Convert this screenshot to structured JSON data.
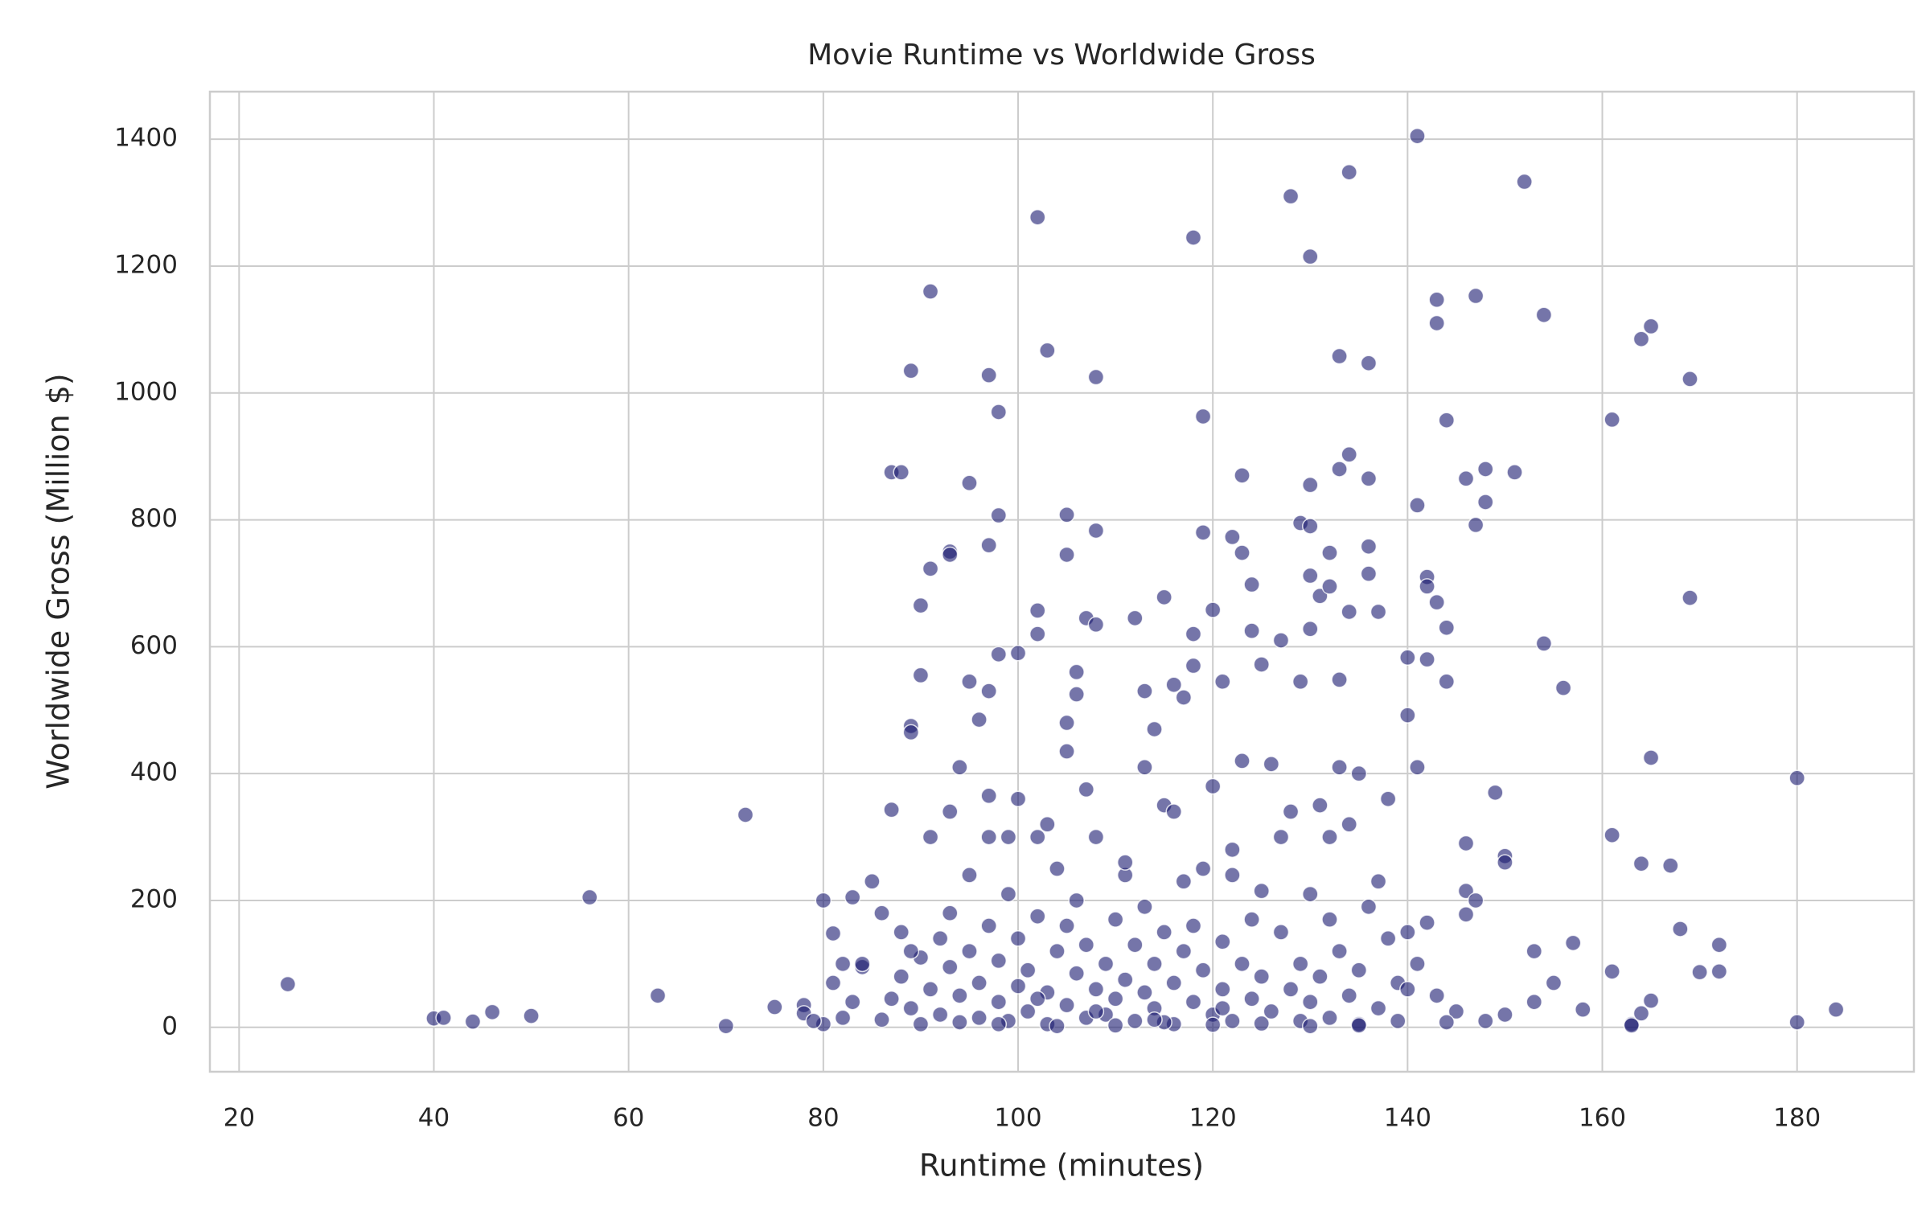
{
  "chart_data": {
    "type": "scatter",
    "title": "Movie Runtime vs Worldwide Gross",
    "x_label": "Runtime (minutes)",
    "y_label": "Worldwide Gross (Million $)",
    "color": "#191970",
    "grid": true,
    "xlim": [
      17,
      192
    ],
    "ylim": [
      -70,
      1475
    ],
    "xticks": [
      20,
      40,
      60,
      80,
      100,
      120,
      140,
      160,
      180
    ],
    "yticks": [
      0,
      200,
      400,
      600,
      800,
      1000,
      1200,
      1400
    ],
    "x": [
      25,
      40,
      41,
      44,
      46,
      50,
      56,
      63,
      70,
      72,
      75,
      78,
      78,
      80,
      81,
      82,
      83,
      84,
      87,
      88,
      87,
      89,
      91,
      90,
      90,
      89,
      89,
      91,
      93,
      93,
      95,
      97,
      97,
      98,
      98,
      98,
      100,
      97,
      96,
      95,
      94,
      102,
      103,
      105,
      105,
      108,
      108,
      102,
      102,
      106,
      106,
      105,
      105,
      107,
      108,
      112,
      113,
      114,
      115,
      118,
      119,
      119,
      120,
      122,
      123,
      123,
      124,
      124,
      118,
      118,
      117,
      116,
      121,
      128,
      130,
      130,
      129,
      130,
      131,
      130,
      132,
      132,
      133,
      134,
      133,
      134,
      136,
      136,
      136,
      136,
      137,
      134,
      130,
      133,
      129,
      127,
      125,
      141,
      141,
      142,
      142,
      143,
      144,
      143,
      143,
      144,
      144,
      142,
      140,
      140,
      141,
      147,
      146,
      148,
      148,
      147,
      151,
      152,
      154,
      154,
      156,
      161,
      164,
      165,
      169,
      169,
      149,
      150,
      150,
      146,
      146,
      147,
      146,
      153,
      155,
      157,
      158,
      161,
      161,
      164,
      165,
      167,
      168,
      170,
      172,
      172,
      180,
      180,
      184,
      163,
      163,
      165,
      164,
      153,
      150,
      148,
      145,
      144,
      86,
      87,
      88,
      88,
      89,
      90,
      90,
      91,
      92,
      92,
      93,
      93,
      94,
      94,
      95,
      95,
      96,
      96,
      97,
      97,
      98,
      98,
      99,
      99,
      100,
      100,
      100,
      101,
      101,
      102,
      102,
      103,
      103,
      104,
      104,
      105,
      105,
      106,
      106,
      107,
      107,
      108,
      108,
      109,
      109,
      110,
      110,
      111,
      111,
      112,
      112,
      113,
      113,
      114,
      114,
      115,
      115,
      116,
      116,
      117,
      117,
      118,
      118,
      119,
      120,
      120,
      121,
      121,
      122,
      122,
      123,
      123,
      124,
      124,
      125,
      125,
      126,
      127,
      127,
      128,
      129,
      129,
      130,
      130,
      131,
      131,
      132,
      132,
      133,
      133,
      134,
      134,
      135,
      135,
      136,
      137,
      137,
      138,
      138,
      139,
      139,
      140,
      140,
      141,
      142,
      143,
      85,
      84,
      83,
      82,
      81,
      80,
      79,
      86,
      89,
      91,
      93,
      97,
      99,
      103,
      107,
      111,
      113,
      116,
      119,
      122,
      126,
      128,
      132,
      135,
      98,
      104,
      110,
      115,
      120,
      125,
      130,
      135,
      102,
      108,
      114,
      121
    ],
    "values": [
      68,
      14,
      15,
      9,
      24,
      18,
      205,
      50,
      2,
      335,
      32,
      35,
      22,
      200,
      148,
      100,
      205,
      95,
      875,
      875,
      343,
      1035,
      1160,
      665,
      555,
      475,
      465,
      723,
      750,
      745,
      858,
      1028,
      760,
      970,
      807,
      588,
      590,
      530,
      485,
      545,
      410,
      1277,
      1067,
      745,
      808,
      1025,
      783,
      657,
      620,
      560,
      525,
      480,
      435,
      645,
      635,
      645,
      530,
      470,
      678,
      1245,
      963,
      780,
      658,
      773,
      748,
      870,
      698,
      625,
      620,
      570,
      520,
      540,
      545,
      1310,
      1215,
      855,
      795,
      790,
      680,
      712,
      748,
      695,
      880,
      903,
      1058,
      1348,
      1047,
      865,
      758,
      715,
      655,
      655,
      628,
      548,
      545,
      610,
      572,
      1405,
      823,
      710,
      695,
      670,
      630,
      1110,
      1147,
      957,
      545,
      580,
      583,
      492,
      410,
      1153,
      865,
      880,
      828,
      792,
      875,
      1333,
      1123,
      605,
      535,
      958,
      1085,
      1105,
      1022,
      677,
      370,
      270,
      260,
      290,
      215,
      200,
      178,
      120,
      70,
      133,
      28,
      303,
      88,
      258,
      425,
      255,
      155,
      87,
      88,
      130,
      393,
      8,
      28,
      5,
      3,
      42,
      22,
      40,
      20,
      10,
      25,
      8,
      12,
      45,
      80,
      150,
      30,
      110,
      5,
      60,
      140,
      20,
      95,
      180,
      50,
      8,
      120,
      240,
      70,
      15,
      160,
      300,
      40,
      105,
      210,
      10,
      65,
      140,
      360,
      25,
      90,
      175,
      300,
      55,
      5,
      120,
      250,
      35,
      160,
      85,
      200,
      15,
      130,
      60,
      300,
      100,
      20,
      170,
      45,
      240,
      75,
      10,
      130,
      190,
      55,
      100,
      30,
      150,
      350,
      70,
      5,
      120,
      230,
      40,
      160,
      90,
      20,
      380,
      135,
      60,
      240,
      10,
      100,
      420,
      45,
      170,
      80,
      215,
      25,
      150,
      300,
      60,
      10,
      100,
      210,
      40,
      350,
      80,
      15,
      170,
      120,
      410,
      50,
      320,
      90,
      5,
      190,
      30,
      230,
      140,
      360,
      70,
      10,
      150,
      60,
      100,
      165,
      50,
      230,
      100,
      40,
      15,
      70,
      5,
      10,
      180,
      120,
      300,
      340,
      365,
      300,
      320,
      375,
      260,
      410,
      340,
      250,
      280,
      415,
      340,
      300,
      400,
      5,
      2,
      3,
      8,
      4,
      6,
      2,
      3,
      45,
      25,
      12,
      30
    ]
  }
}
